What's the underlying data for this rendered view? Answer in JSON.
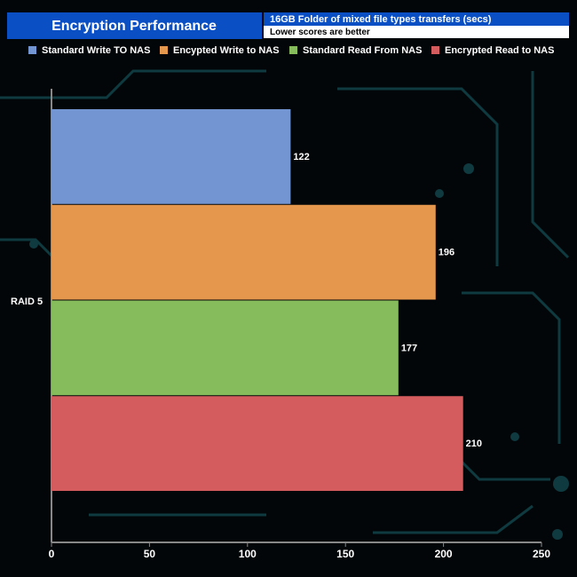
{
  "chart_data": {
    "type": "bar",
    "orientation": "horizontal",
    "title": "Encryption Performance",
    "subtitle": "16GB Folder of mixed file types transfers (secs)",
    "note": "Lower scores are better",
    "categories": [
      "RAID 5"
    ],
    "series": [
      {
        "name": "Standard Write TO NAS",
        "color": "#7396d2",
        "values": [
          122
        ]
      },
      {
        "name": "Encypted Write to NAS",
        "color": "#e5984d",
        "values": [
          196
        ]
      },
      {
        "name": "Standard Read From NAS",
        "color": "#87bc5d",
        "values": [
          177
        ]
      },
      {
        "name": "Encrypted Read to NAS",
        "color": "#d45c5e",
        "values": [
          210
        ]
      }
    ],
    "xlim": [
      0,
      250
    ],
    "xticks": [
      0,
      50,
      100,
      150,
      200,
      250
    ],
    "grid": false
  }
}
